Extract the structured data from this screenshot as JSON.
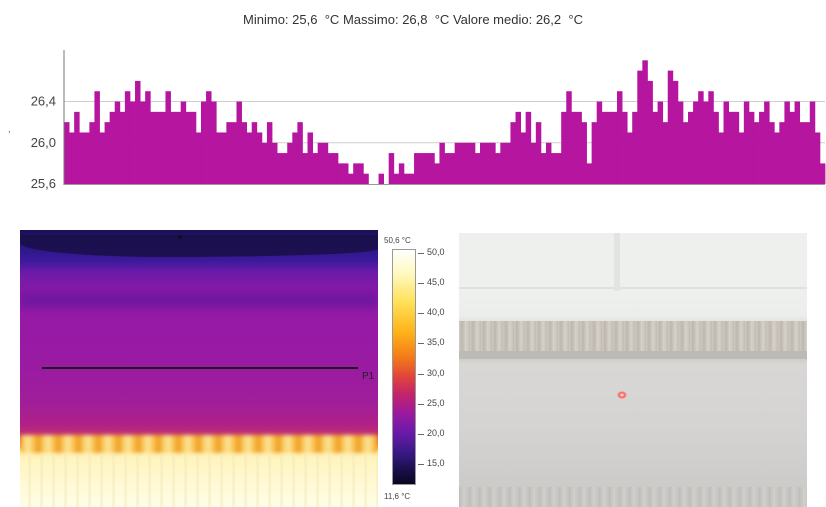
{
  "stats": {
    "min_label": "Minimo:",
    "min_value": "25,6",
    "max_label": "Massimo:",
    "max_value": "26,8",
    "avg_label": "Valore medio:",
    "avg_value": "26,2",
    "unit": "°C"
  },
  "chart_data": {
    "type": "bar",
    "title": "",
    "xlabel": "",
    "ylabel": "",
    "ylim": [
      25.6,
      26.9
    ],
    "yticks": [
      {
        "value": 25.6,
        "label": "25,6"
      },
      {
        "value": 26.0,
        "label": "26,0"
      },
      {
        "value": 26.4,
        "label": "26,4"
      }
    ],
    "grid": "horizontal",
    "color": "#b5159f",
    "values": [
      26.2,
      26.1,
      26.3,
      26.1,
      26.1,
      26.2,
      26.5,
      26.1,
      26.2,
      26.3,
      26.4,
      26.3,
      26.5,
      26.4,
      26.6,
      26.4,
      26.5,
      26.3,
      26.3,
      26.3,
      26.5,
      26.3,
      26.3,
      26.4,
      26.3,
      26.3,
      26.1,
      26.4,
      26.5,
      26.4,
      26.1,
      26.1,
      26.2,
      26.2,
      26.4,
      26.2,
      26.1,
      26.2,
      26.1,
      26.0,
      26.2,
      26.0,
      25.9,
      25.9,
      26.0,
      26.1,
      26.2,
      25.9,
      26.1,
      25.9,
      26.0,
      26.0,
      25.9,
      25.9,
      25.8,
      25.8,
      25.7,
      25.8,
      25.8,
      25.7,
      25.6,
      25.6,
      25.7,
      25.6,
      25.9,
      25.7,
      25.8,
      25.7,
      25.7,
      25.9,
      25.9,
      25.9,
      25.9,
      25.8,
      26.0,
      25.9,
      25.9,
      26.0,
      26.0,
      26.0,
      26.0,
      25.9,
      26.0,
      26.0,
      26.0,
      25.9,
      26.0,
      26.0,
      26.2,
      26.3,
      26.1,
      26.3,
      26.0,
      26.2,
      25.9,
      26.0,
      25.9,
      25.9,
      26.3,
      26.5,
      26.3,
      26.3,
      26.2,
      25.8,
      26.2,
      26.4,
      26.3,
      26.3,
      26.3,
      26.5,
      26.3,
      26.1,
      26.3,
      26.7,
      26.8,
      26.6,
      26.3,
      26.4,
      26.2,
      26.7,
      26.6,
      26.4,
      26.2,
      26.3,
      26.4,
      26.5,
      26.4,
      26.5,
      26.3,
      26.1,
      26.4,
      26.3,
      26.3,
      26.1,
      26.4,
      26.3,
      26.2,
      26.3,
      26.4,
      26.2,
      26.1,
      26.2,
      26.4,
      26.3,
      26.4,
      26.2,
      26.2,
      26.4,
      26.1,
      25.8
    ]
  },
  "thermal": {
    "scale_max": "50,6 °C",
    "scale_min": "11,6 °C",
    "scale_ticks": [
      {
        "value": 50.0,
        "label": "50,0"
      },
      {
        "value": 45.0,
        "label": "45,0"
      },
      {
        "value": 40.0,
        "label": "40,0"
      },
      {
        "value": 35.0,
        "label": "35,0"
      },
      {
        "value": 30.0,
        "label": "30,0"
      },
      {
        "value": 25.0,
        "label": "25,0"
      },
      {
        "value": 20.0,
        "label": "20,0"
      },
      {
        "value": 15.0,
        "label": "15,0"
      }
    ],
    "scale_range": [
      11.6,
      50.6
    ],
    "measure_line_label": "P1",
    "palette_colors": [
      "#ffffff",
      "#ffe15a",
      "#f37a1a",
      "#c1236e",
      "#6a1aa8",
      "#1a0f4a"
    ]
  },
  "photo": {
    "laser_color": "#ff3030"
  }
}
